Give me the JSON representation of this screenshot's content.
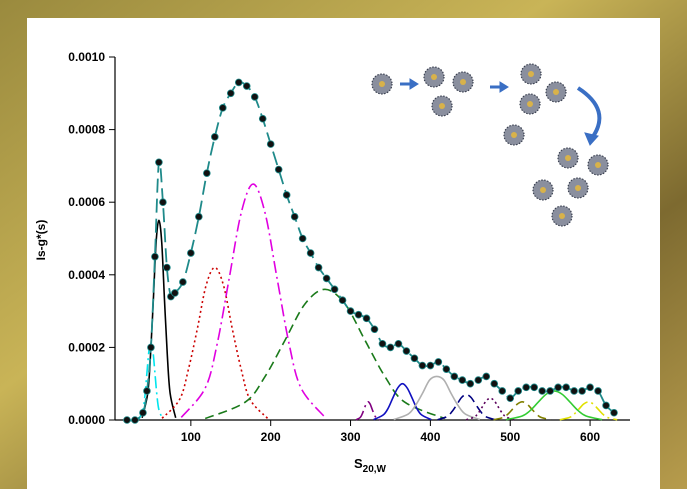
{
  "chart_data": {
    "type": "line",
    "ylabel": "Is-g*(s)",
    "xlabel": {
      "text": "S",
      "subscript": "20,W"
    },
    "xlim": [
      5,
      650
    ],
    "ylim": [
      0,
      0.001
    ],
    "xticks": [
      100,
      200,
      300,
      400,
      500,
      600
    ],
    "yticks": [
      {
        "value": 0,
        "label": "0.0000"
      },
      {
        "value": 0.0002,
        "label": "0.0002"
      },
      {
        "value": 0.0004,
        "label": "0.0004"
      },
      {
        "value": 0.0006,
        "label": "0.0006"
      },
      {
        "value": 0.0008,
        "label": "0.0008"
      },
      {
        "value": 0.001,
        "label": "0.0010"
      }
    ],
    "grid": false,
    "series": [
      {
        "color": "#00e5ee",
        "dash": "dashdot",
        "x": [
          35,
          40,
          42.5,
          45,
          47.5,
          50,
          52.5,
          55,
          57.5,
          60,
          65
        ],
        "values": [
          2.3e-06,
          2.8e-05,
          6.8e-05,
          0.00013,
          0.00019,
          0.00021,
          0.00019,
          0.00013,
          6.8e-05,
          2.8e-05,
          2.3e-06
        ]
      },
      {
        "color": "#000000",
        "dash": "solid",
        "x": [
          39,
          46,
          49.5,
          53,
          56.5,
          60,
          63.5,
          67,
          70.5,
          74,
          81
        ],
        "values": [
          6.1e-06,
          7.4e-05,
          0.00018,
          0.00033,
          0.00049,
          0.00055,
          0.00049,
          0.00033,
          0.00018,
          7.4e-05,
          6.1e-06
        ]
      },
      {
        "color": "#cc0000",
        "dash": "dotted",
        "x": [
          64,
          86,
          97,
          108,
          119,
          130,
          141,
          152,
          163,
          174,
          196
        ],
        "values": [
          4.7e-06,
          5.7e-05,
          0.00014,
          0.00025,
          0.00037,
          0.00042,
          0.00037,
          0.00025,
          0.00014,
          5.7e-05,
          4.7e-06
        ]
      },
      {
        "color": "#e000e0",
        "dash": "dashdot",
        "x": [
          88,
          118,
          133,
          148,
          163,
          178,
          193,
          208,
          223,
          238,
          268
        ],
        "values": [
          7.2e-06,
          8.8e-05,
          0.00021,
          0.00039,
          0.00057,
          0.00065,
          0.00057,
          0.00039,
          0.00021,
          8.8e-05,
          7.2e-06
        ]
      },
      {
        "color": "#1a7a1a",
        "dash": "dashed",
        "x": [
          118,
          168,
          193,
          218,
          243,
          268,
          293,
          318,
          343,
          368,
          418
        ],
        "values": [
          4e-06,
          4.9e-05,
          0.00012,
          0.00022,
          0.00032,
          0.00036,
          0.00032,
          0.00022,
          0.00012,
          4.9e-05,
          4e-06
        ]
      },
      {
        "color": "#800080",
        "dash": "dashdot",
        "x": [
          307,
          312,
          314.5,
          317,
          319.5,
          322,
          324.5,
          327,
          329.5,
          332,
          337
        ],
        "values": [
          6e-07,
          6.8e-06,
          1.6e-05,
          3e-05,
          4.4e-05,
          5e-05,
          4.4e-05,
          3e-05,
          1.6e-05,
          6.8e-06,
          6e-07
        ]
      },
      {
        "color": "#1010c0",
        "dash": "solid",
        "x": [
          329,
          341,
          347,
          353,
          359,
          365,
          371,
          377,
          383,
          389,
          401
        ],
        "values": [
          1.1e-06,
          1.4e-05,
          3.2e-05,
          6.1e-05,
          8.8e-05,
          0.0001,
          8.8e-05,
          6.1e-05,
          3.2e-05,
          1.4e-05,
          1.1e-06
        ]
      },
      {
        "color": "#b0b0b0",
        "dash": "solid",
        "x": [
          354,
          372,
          381,
          390,
          399,
          408,
          417,
          426,
          435,
          444,
          462
        ],
        "values": [
          1.3e-06,
          1.6e-05,
          3.9e-05,
          7.3e-05,
          0.00011,
          0.00012,
          0.00011,
          7.3e-05,
          3.9e-05,
          1.6e-05,
          1.3e-06
        ]
      },
      {
        "color": "#000080",
        "dash": "dashed",
        "x": [
          409,
          421,
          427,
          433,
          439,
          445,
          451,
          457,
          463,
          469,
          481
        ],
        "values": [
          8e-07,
          9.5e-06,
          2.3e-05,
          4.2e-05,
          6.2e-05,
          7e-05,
          6.2e-05,
          4.2e-05,
          2.3e-05,
          9.5e-06,
          8e-07
        ]
      },
      {
        "color": "#5a005a",
        "dash": "dotted",
        "x": [
          445,
          455,
          460,
          465,
          470,
          475,
          480,
          485,
          490,
          495,
          505
        ],
        "values": [
          7e-07,
          8.1e-06,
          1.9e-05,
          3.6e-05,
          5.3e-05,
          6e-05,
          5.3e-05,
          3.6e-05,
          1.9e-05,
          8.1e-06,
          7e-07
        ]
      },
      {
        "color": "#808000",
        "dash": "dashed",
        "x": [
          479,
          491,
          497,
          503,
          509,
          515,
          521,
          527,
          533,
          539,
          551
        ],
        "values": [
          6e-07,
          6.8e-06,
          1.6e-05,
          3e-05,
          4.4e-05,
          5e-05,
          4.4e-05,
          3e-05,
          1.6e-05,
          6.8e-06,
          6e-07
        ]
      },
      {
        "color": "#33cc33",
        "dash": "solid",
        "x": [
          495,
          515,
          525,
          535,
          545,
          555,
          565,
          575,
          585,
          595,
          615
        ],
        "values": [
          9e-07,
          1.1e-05,
          2.6e-05,
          4.9e-05,
          7.1e-05,
          8e-05,
          7.1e-05,
          4.9e-05,
          2.6e-05,
          1.1e-05,
          9e-07
        ]
      },
      {
        "color": "#e0e000",
        "dash": "dashdot",
        "x": [
          562,
          574,
          580,
          586,
          592,
          598,
          604,
          610,
          616,
          622,
          634
        ],
        "values": [
          6e-07,
          6.8e-06,
          1.6e-05,
          3e-05,
          4.4e-05,
          5e-05,
          4.4e-05,
          3e-05,
          1.6e-05,
          6.8e-06,
          6e-07
        ]
      },
      {
        "color": "#1f8a8a",
        "dash": "longdash",
        "marker": "circle",
        "marker_color": "#111111",
        "x": [
          20,
          30,
          40,
          45,
          50,
          55,
          60,
          65,
          70,
          75,
          80,
          90,
          100,
          110,
          120,
          130,
          140,
          150,
          160,
          170,
          180,
          190,
          200,
          210,
          220,
          230,
          240,
          250,
          260,
          270,
          280,
          290,
          300,
          310,
          320,
          330,
          340,
          350,
          360,
          370,
          380,
          390,
          400,
          410,
          420,
          430,
          440,
          450,
          460,
          470,
          480,
          490,
          500,
          510,
          520,
          530,
          540,
          550,
          560,
          570,
          580,
          590,
          600,
          610,
          620,
          630
        ],
        "values": [
          0,
          0,
          2e-05,
          8e-05,
          0.0002,
          0.00045,
          0.00071,
          0.0006,
          0.00042,
          0.00034,
          0.00035,
          0.00038,
          0.00046,
          0.00056,
          0.00068,
          0.00078,
          0.00086,
          0.0009,
          0.00093,
          0.00092,
          0.00089,
          0.00083,
          0.00076,
          0.00069,
          0.00062,
          0.00056,
          0.0005,
          0.00046,
          0.00042,
          0.00039,
          0.00036,
          0.00033,
          0.0003,
          0.00029,
          0.00028,
          0.00025,
          0.00021,
          0.0002,
          0.00021,
          0.00019,
          0.00017,
          0.00015,
          0.00015,
          0.00016,
          0.00014,
          0.00012,
          0.00011,
          0.0001,
          0.00011,
          0.00012,
          0.0001,
          8e-05,
          6e-05,
          8e-05,
          9e-05,
          9e-05,
          8e-05,
          8e-05,
          9e-05,
          9e-05,
          8e-05,
          8e-05,
          9e-05,
          8e-05,
          4e-05,
          2e-05
        ]
      }
    ]
  }
}
